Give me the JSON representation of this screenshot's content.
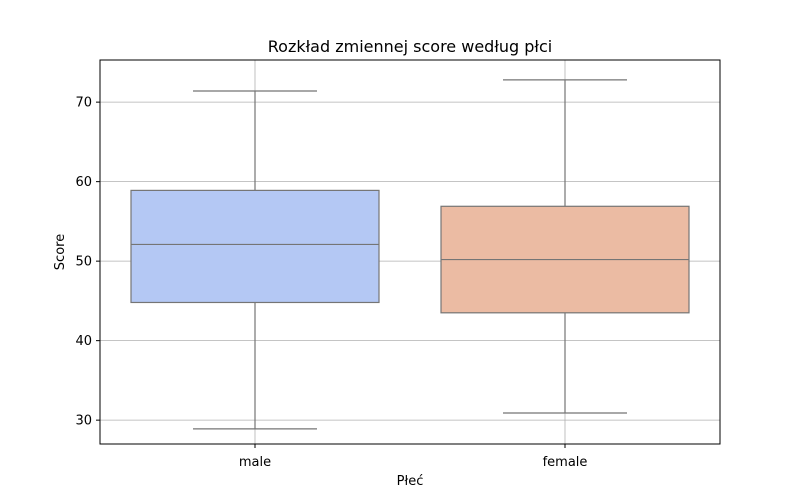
{
  "chart_data": {
    "type": "box",
    "title": "Rozkład zmiennej score według płci",
    "xlabel": "Płeć",
    "ylabel": "Score",
    "ylim": [
      27,
      75.3
    ],
    "yticks": [
      30,
      40,
      50,
      60,
      70
    ],
    "grid": true,
    "categories": [
      "male",
      "female"
    ],
    "boxes": [
      {
        "category": "male",
        "whisker_low": 28.9,
        "q1": 44.8,
        "median": 52.1,
        "q3": 58.9,
        "whisker_high": 71.4,
        "color": "#b4c8f4"
      },
      {
        "category": "female",
        "whisker_low": 30.9,
        "q1": 43.5,
        "median": 50.2,
        "q3": 56.9,
        "whisker_high": 72.8,
        "color": "#ebbba3"
      }
    ]
  },
  "colors": {
    "line": "#757575",
    "grid": "#b0b0b0",
    "axis": "#000000"
  }
}
